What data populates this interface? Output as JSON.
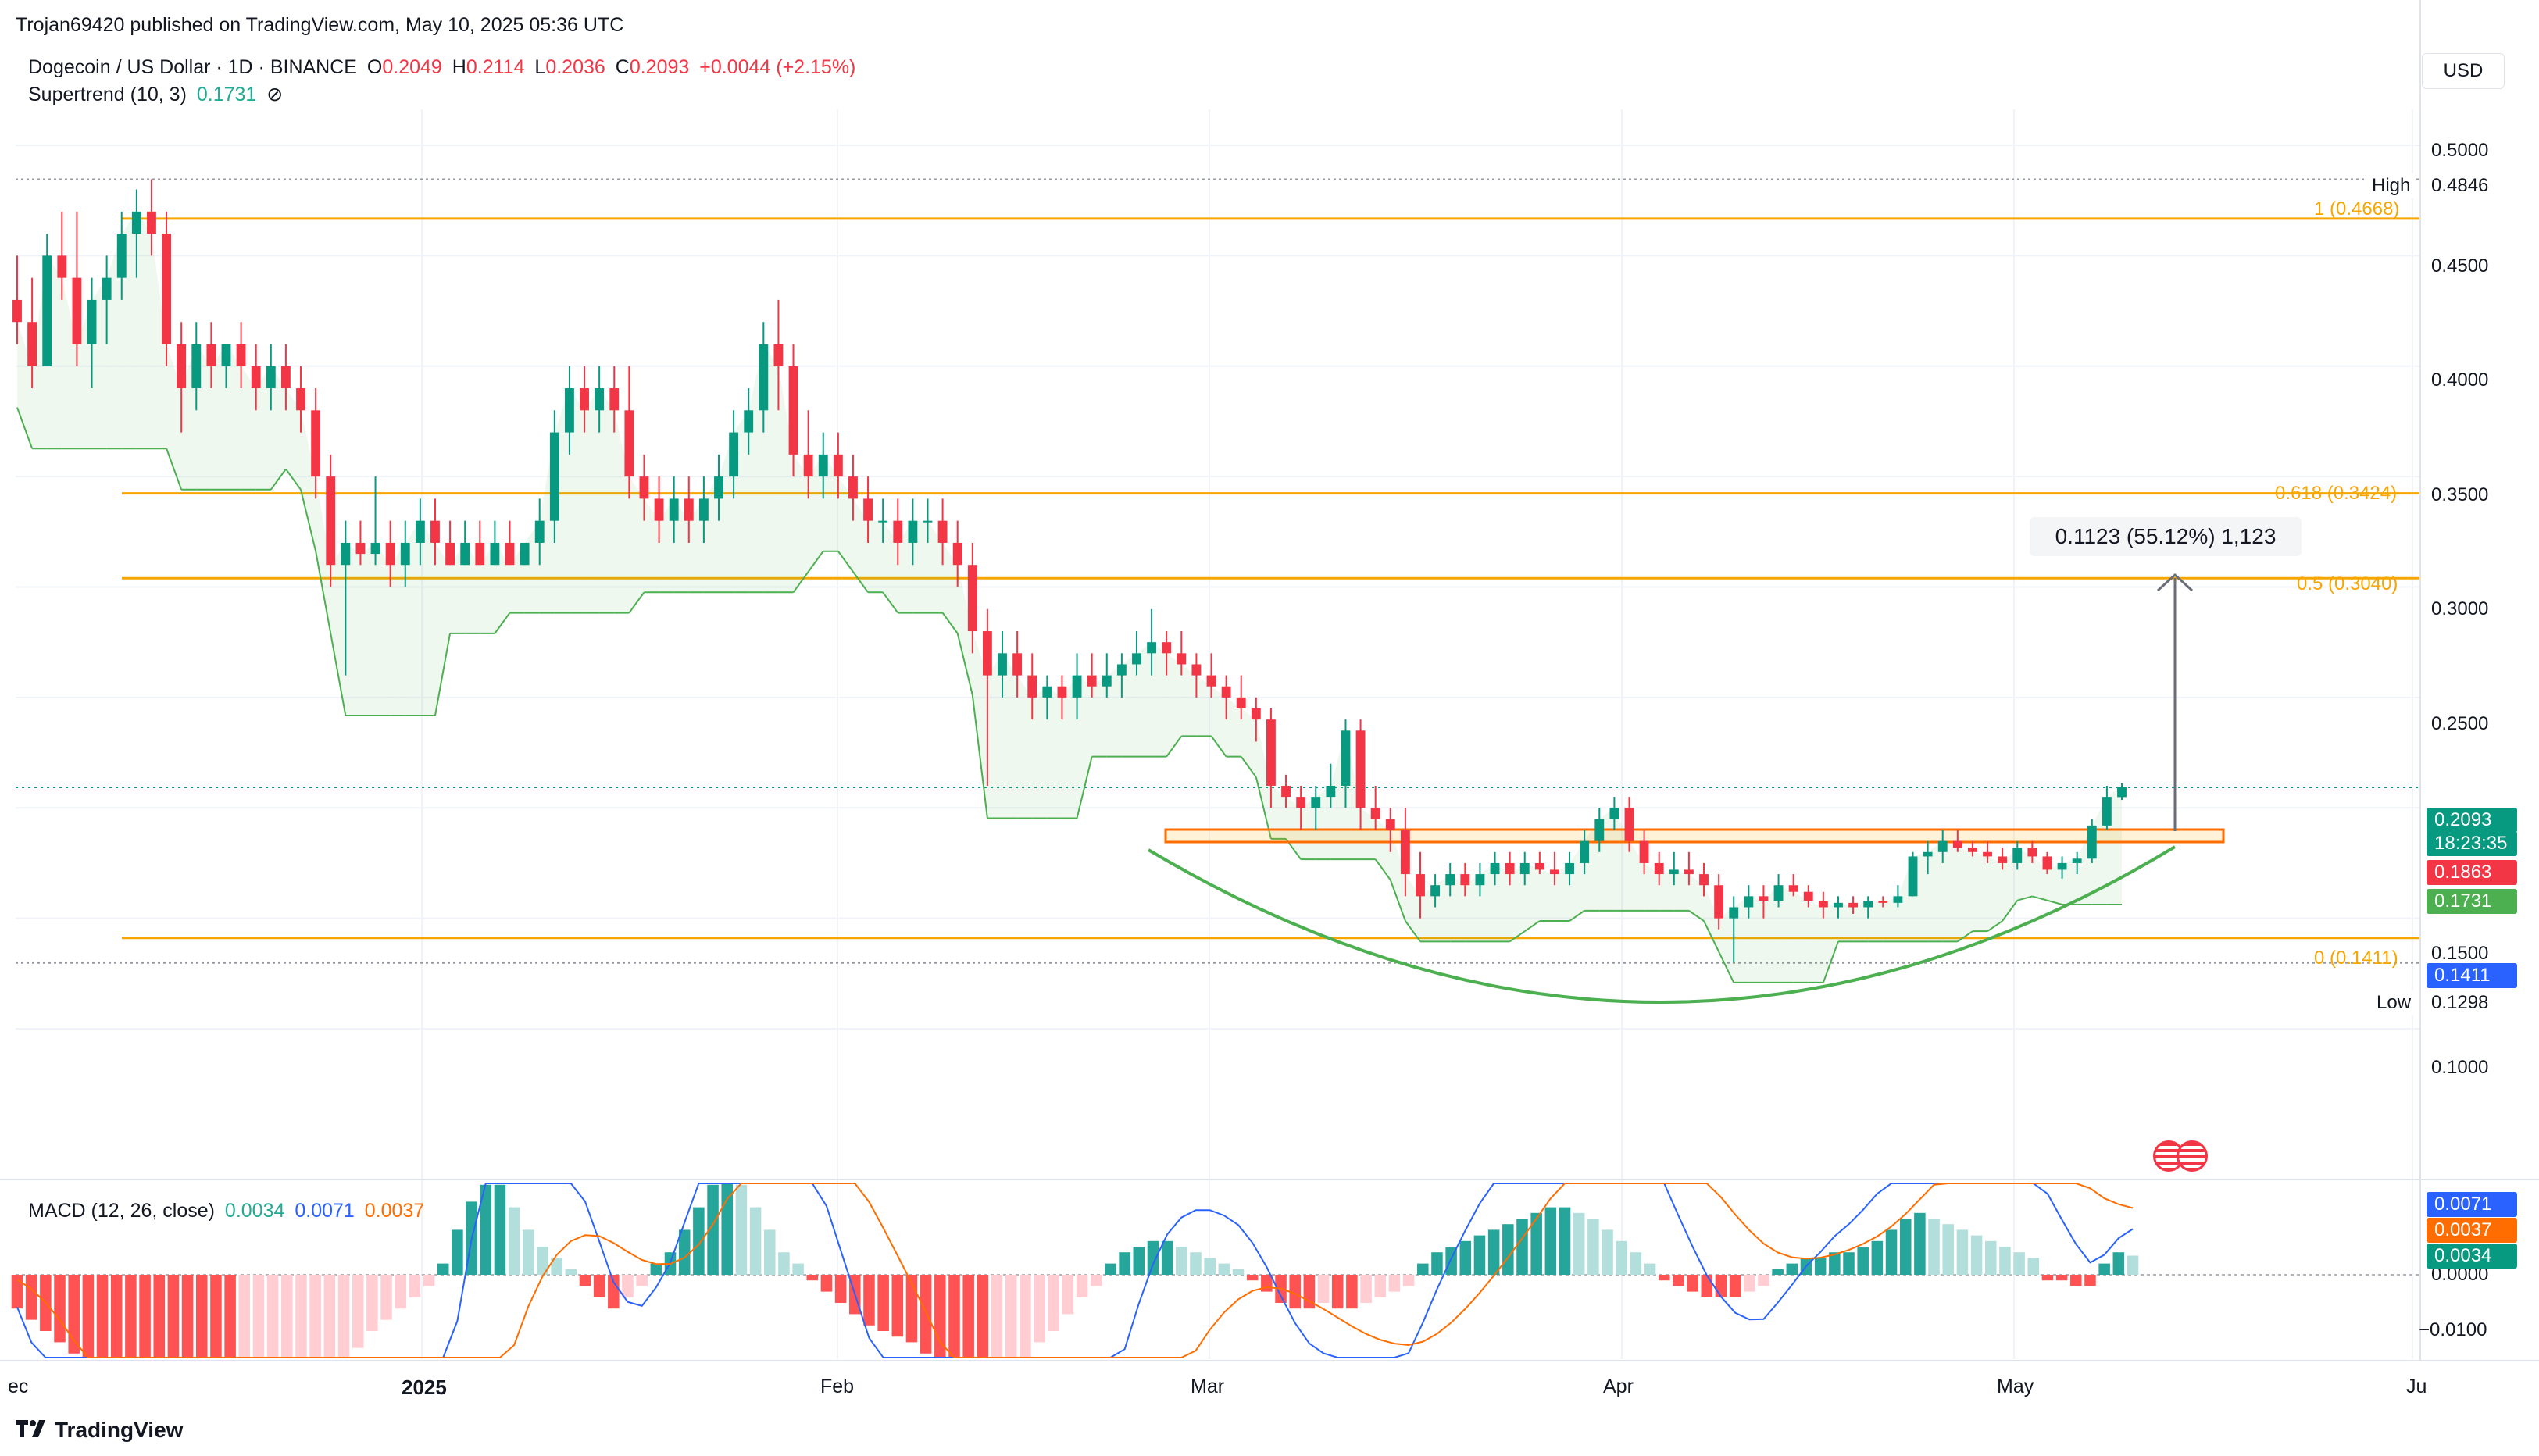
{
  "header": {
    "published_text": "Trojan69420 published on TradingView.com, May 10, 2025 05:36 UTC"
  },
  "legend": {
    "symbol": "Dogecoin / US Dollar · 1D · BINANCE",
    "o_label": "O",
    "o_value": "0.2049",
    "h_label": "H",
    "h_value": "0.2114",
    "l_label": "L",
    "l_value": "0.2036",
    "c_label": "C",
    "c_value": "0.2093",
    "change": "+0.0044 (+2.15%)",
    "indicator": "Supertrend (10, 3)",
    "indicator_value": "0.1731",
    "indicator_icon": "no-visibility-icon"
  },
  "currency_button": "USD",
  "price_axis": {
    "ticks": [
      "0.5000",
      "0.4500",
      "0.4000",
      "0.3500",
      "0.3000",
      "0.2500",
      "0.1500",
      "0.1000"
    ]
  },
  "price_tags": {
    "high_label": "High",
    "high_value": "0.4846",
    "low_label": "Low",
    "low_value": "0.1298",
    "current": "0.2093",
    "countdown": "18:23:35",
    "red": "0.1863",
    "green": "0.1731",
    "blue": "0.1411"
  },
  "fib_labels": [
    "1 (0.4668)",
    "0.618 (0.3424)",
    "0.5 (0.3040)",
    "0 (0.1411)"
  ],
  "measure": {
    "text": "0.1123 (55.12%) 1,123"
  },
  "macd": {
    "label": "MACD (12, 26, close)",
    "hist_value": "0.0034",
    "macd_value": "0.0071",
    "signal_value": "0.0037",
    "axis_ticks": [
      "0.0000",
      "−0.0100"
    ],
    "tag_macd": "0.0071",
    "tag_signal": "0.0037",
    "tag_hist": "0.0034"
  },
  "time_axis": [
    "ec",
    "2025",
    "Feb",
    "Mar",
    "Apr",
    "May",
    "Ju"
  ],
  "footer": {
    "brand": "TradingView"
  },
  "colors": {
    "up": "#089981",
    "down": "#f23645",
    "fib": "#f7a600",
    "supertrend_up": "#4caf50",
    "supertrend_down": "#f23645",
    "macd_line": "#2962ff",
    "signal_line": "#ff6d00",
    "cup": "#4caf50"
  },
  "chart_data": {
    "type": "candlestick",
    "title": "Dogecoin / US Dollar · 1D · BINANCE",
    "ylim": [
      0.08,
      0.52
    ],
    "grid": true,
    "x_range": [
      "2024-12-01",
      "2025-06-01"
    ],
    "series": [
      {
        "name": "DOGEUSD",
        "ohlc": [
          [
            0.43,
            0.45,
            0.41,
            0.42
          ],
          [
            0.42,
            0.44,
            0.39,
            0.4
          ],
          [
            0.4,
            0.46,
            0.4,
            0.45
          ],
          [
            0.45,
            0.47,
            0.43,
            0.44
          ],
          [
            0.44,
            0.47,
            0.4,
            0.41
          ],
          [
            0.41,
            0.44,
            0.39,
            0.43
          ],
          [
            0.43,
            0.45,
            0.41,
            0.44
          ],
          [
            0.44,
            0.47,
            0.43,
            0.46
          ],
          [
            0.46,
            0.48,
            0.44,
            0.47
          ],
          [
            0.47,
            0.4846,
            0.45,
            0.46
          ],
          [
            0.46,
            0.47,
            0.4,
            0.41
          ],
          [
            0.41,
            0.42,
            0.37,
            0.39
          ],
          [
            0.39,
            0.42,
            0.38,
            0.41
          ],
          [
            0.41,
            0.42,
            0.39,
            0.4
          ],
          [
            0.4,
            0.41,
            0.39,
            0.41
          ],
          [
            0.41,
            0.42,
            0.39,
            0.4
          ],
          [
            0.4,
            0.41,
            0.38,
            0.39
          ],
          [
            0.39,
            0.41,
            0.38,
            0.4
          ],
          [
            0.4,
            0.41,
            0.38,
            0.39
          ],
          [
            0.39,
            0.4,
            0.37,
            0.38
          ],
          [
            0.38,
            0.39,
            0.34,
            0.35
          ],
          [
            0.35,
            0.36,
            0.3,
            0.31
          ],
          [
            0.31,
            0.33,
            0.26,
            0.32
          ],
          [
            0.32,
            0.33,
            0.31,
            0.315
          ],
          [
            0.315,
            0.35,
            0.31,
            0.32
          ],
          [
            0.32,
            0.33,
            0.3,
            0.31
          ],
          [
            0.31,
            0.33,
            0.3,
            0.32
          ],
          [
            0.32,
            0.34,
            0.31,
            0.33
          ],
          [
            0.33,
            0.34,
            0.31,
            0.32
          ],
          [
            0.32,
            0.33,
            0.31,
            0.31
          ],
          [
            0.31,
            0.33,
            0.31,
            0.32
          ],
          [
            0.32,
            0.33,
            0.31,
            0.31
          ],
          [
            0.31,
            0.33,
            0.31,
            0.32
          ],
          [
            0.32,
            0.33,
            0.31,
            0.31
          ],
          [
            0.31,
            0.32,
            0.31,
            0.32
          ],
          [
            0.32,
            0.34,
            0.31,
            0.33
          ],
          [
            0.33,
            0.38,
            0.32,
            0.37
          ],
          [
            0.37,
            0.4,
            0.36,
            0.39
          ],
          [
            0.39,
            0.4,
            0.37,
            0.38
          ],
          [
            0.38,
            0.4,
            0.37,
            0.39
          ],
          [
            0.39,
            0.4,
            0.37,
            0.38
          ],
          [
            0.38,
            0.4,
            0.34,
            0.35
          ],
          [
            0.35,
            0.36,
            0.33,
            0.34
          ],
          [
            0.34,
            0.35,
            0.32,
            0.33
          ],
          [
            0.33,
            0.35,
            0.32,
            0.34
          ],
          [
            0.34,
            0.35,
            0.32,
            0.33
          ],
          [
            0.33,
            0.35,
            0.32,
            0.34
          ],
          [
            0.34,
            0.36,
            0.33,
            0.35
          ],
          [
            0.35,
            0.38,
            0.34,
            0.37
          ],
          [
            0.37,
            0.39,
            0.36,
            0.38
          ],
          [
            0.38,
            0.42,
            0.37,
            0.41
          ],
          [
            0.41,
            0.43,
            0.38,
            0.4
          ],
          [
            0.4,
            0.41,
            0.35,
            0.36
          ],
          [
            0.36,
            0.38,
            0.34,
            0.35
          ],
          [
            0.35,
            0.37,
            0.34,
            0.36
          ],
          [
            0.36,
            0.37,
            0.34,
            0.35
          ],
          [
            0.35,
            0.36,
            0.33,
            0.34
          ],
          [
            0.34,
            0.35,
            0.32,
            0.33
          ],
          [
            0.33,
            0.34,
            0.32,
            0.33
          ],
          [
            0.33,
            0.34,
            0.31,
            0.32
          ],
          [
            0.32,
            0.34,
            0.31,
            0.33
          ],
          [
            0.33,
            0.34,
            0.32,
            0.33
          ],
          [
            0.33,
            0.34,
            0.31,
            0.32
          ],
          [
            0.32,
            0.33,
            0.3,
            0.31
          ],
          [
            0.31,
            0.32,
            0.27,
            0.28
          ],
          [
            0.28,
            0.29,
            0.21,
            0.26
          ],
          [
            0.26,
            0.28,
            0.25,
            0.27
          ],
          [
            0.27,
            0.28,
            0.25,
            0.26
          ],
          [
            0.26,
            0.27,
            0.24,
            0.25
          ],
          [
            0.25,
            0.26,
            0.24,
            0.255
          ],
          [
            0.255,
            0.26,
            0.24,
            0.25
          ],
          [
            0.25,
            0.27,
            0.24,
            0.26
          ],
          [
            0.26,
            0.27,
            0.25,
            0.255
          ],
          [
            0.255,
            0.27,
            0.25,
            0.26
          ],
          [
            0.26,
            0.27,
            0.25,
            0.265
          ],
          [
            0.265,
            0.28,
            0.26,
            0.27
          ],
          [
            0.27,
            0.29,
            0.26,
            0.275
          ],
          [
            0.275,
            0.28,
            0.26,
            0.27
          ],
          [
            0.27,
            0.28,
            0.26,
            0.265
          ],
          [
            0.265,
            0.27,
            0.25,
            0.26
          ],
          [
            0.26,
            0.27,
            0.25,
            0.255
          ],
          [
            0.255,
            0.26,
            0.24,
            0.25
          ],
          [
            0.25,
            0.26,
            0.24,
            0.245
          ],
          [
            0.245,
            0.25,
            0.23,
            0.24
          ],
          [
            0.24,
            0.245,
            0.2,
            0.21
          ],
          [
            0.21,
            0.215,
            0.2,
            0.205
          ],
          [
            0.205,
            0.21,
            0.19,
            0.2
          ],
          [
            0.2,
            0.21,
            0.19,
            0.205
          ],
          [
            0.205,
            0.22,
            0.2,
            0.21
          ],
          [
            0.21,
            0.24,
            0.2,
            0.235
          ],
          [
            0.235,
            0.24,
            0.19,
            0.2
          ],
          [
            0.2,
            0.21,
            0.19,
            0.195
          ],
          [
            0.195,
            0.2,
            0.18,
            0.19
          ],
          [
            0.19,
            0.2,
            0.16,
            0.17
          ],
          [
            0.17,
            0.18,
            0.15,
            0.16
          ],
          [
            0.16,
            0.17,
            0.155,
            0.165
          ],
          [
            0.165,
            0.175,
            0.16,
            0.17
          ],
          [
            0.17,
            0.175,
            0.16,
            0.165
          ],
          [
            0.165,
            0.175,
            0.16,
            0.17
          ],
          [
            0.17,
            0.18,
            0.165,
            0.175
          ],
          [
            0.175,
            0.18,
            0.165,
            0.17
          ],
          [
            0.17,
            0.18,
            0.165,
            0.175
          ],
          [
            0.175,
            0.18,
            0.17,
            0.172
          ],
          [
            0.172,
            0.18,
            0.165,
            0.17
          ],
          [
            0.17,
            0.18,
            0.165,
            0.175
          ],
          [
            0.175,
            0.19,
            0.17,
            0.185
          ],
          [
            0.185,
            0.2,
            0.18,
            0.195
          ],
          [
            0.195,
            0.205,
            0.19,
            0.2
          ],
          [
            0.2,
            0.205,
            0.18,
            0.185
          ],
          [
            0.185,
            0.19,
            0.17,
            0.175
          ],
          [
            0.175,
            0.18,
            0.165,
            0.17
          ],
          [
            0.17,
            0.18,
            0.165,
            0.172
          ],
          [
            0.172,
            0.18,
            0.165,
            0.17
          ],
          [
            0.17,
            0.175,
            0.16,
            0.165
          ],
          [
            0.165,
            0.17,
            0.145,
            0.15
          ],
          [
            0.15,
            0.16,
            0.13,
            0.155
          ],
          [
            0.155,
            0.165,
            0.15,
            0.16
          ],
          [
            0.16,
            0.165,
            0.15,
            0.158
          ],
          [
            0.158,
            0.17,
            0.155,
            0.165
          ],
          [
            0.165,
            0.17,
            0.16,
            0.162
          ],
          [
            0.162,
            0.165,
            0.155,
            0.158
          ],
          [
            0.158,
            0.162,
            0.15,
            0.155
          ],
          [
            0.155,
            0.16,
            0.15,
            0.157
          ],
          [
            0.157,
            0.16,
            0.152,
            0.155
          ],
          [
            0.155,
            0.16,
            0.15,
            0.158
          ],
          [
            0.158,
            0.16,
            0.155,
            0.157
          ],
          [
            0.157,
            0.165,
            0.155,
            0.16
          ],
          [
            0.16,
            0.18,
            0.16,
            0.178
          ],
          [
            0.178,
            0.185,
            0.17,
            0.18
          ],
          [
            0.18,
            0.19,
            0.175,
            0.185
          ],
          [
            0.185,
            0.19,
            0.18,
            0.182
          ],
          [
            0.182,
            0.185,
            0.178,
            0.18
          ],
          [
            0.18,
            0.185,
            0.175,
            0.178
          ],
          [
            0.178,
            0.182,
            0.172,
            0.175
          ],
          [
            0.175,
            0.185,
            0.172,
            0.182
          ],
          [
            0.182,
            0.185,
            0.175,
            0.178
          ],
          [
            0.178,
            0.18,
            0.17,
            0.172
          ],
          [
            0.172,
            0.178,
            0.168,
            0.175
          ],
          [
            0.175,
            0.18,
            0.17,
            0.177
          ],
          [
            0.177,
            0.195,
            0.175,
            0.192
          ],
          [
            0.192,
            0.21,
            0.19,
            0.205
          ],
          [
            0.2049,
            0.2114,
            0.2036,
            0.2093
          ]
        ]
      },
      {
        "name": "Supertrend (10, 3)",
        "last": 0.1731
      }
    ],
    "fib_levels": [
      {
        "level": "1",
        "value": 0.4668
      },
      {
        "level": "0.618",
        "value": 0.3424
      },
      {
        "level": "0.5",
        "value": 0.304
      },
      {
        "level": "0",
        "value": 0.1411
      }
    ],
    "high": 0.4846,
    "low": 0.1298,
    "measure": {
      "delta": 0.1123,
      "percent": 55.12,
      "bars": 1123
    },
    "macd": {
      "params": "12, 26, close",
      "ylim": [
        -0.014,
        0.03
      ],
      "histogram": [
        -0.006,
        -0.008,
        -0.01,
        -0.012,
        -0.014,
        -0.015,
        -0.016,
        -0.017,
        -0.018,
        -0.019,
        -0.02,
        -0.022,
        -0.024,
        -0.025,
        -0.026,
        -0.027,
        -0.026,
        -0.025,
        -0.024,
        -0.023,
        -0.022,
        -0.02,
        -0.018,
        -0.015,
        -0.013,
        -0.01,
        -0.008,
        -0.006,
        -0.004,
        -0.002,
        0.002,
        0.008,
        0.013,
        0.016,
        0.016,
        0.012,
        0.008,
        0.005,
        0.003,
        0.001,
        -0.002,
        -0.004,
        -0.006,
        -0.004,
        -0.002,
        0.002,
        0.004,
        0.008,
        0.012,
        0.016,
        0.018,
        0.016,
        0.012,
        0.008,
        0.004,
        0.002,
        -0.001,
        -0.003,
        -0.005,
        -0.007,
        -0.009,
        -0.01,
        -0.011,
        -0.012,
        -0.014,
        -0.016,
        -0.02,
        -0.022,
        -0.024,
        -0.022,
        -0.02,
        -0.016,
        -0.012,
        -0.01,
        -0.007,
        -0.004,
        -0.002,
        0.002,
        0.004,
        0.005,
        0.006,
        0.006,
        0.005,
        0.004,
        0.003,
        0.002,
        0.001,
        -0.001,
        -0.003,
        -0.005,
        -0.006,
        -0.006,
        -0.005,
        -0.006,
        -0.006,
        -0.005,
        -0.004,
        -0.003,
        -0.002,
        0.002,
        0.004,
        0.005,
        0.006,
        0.007,
        0.008,
        0.009,
        0.01,
        0.011,
        0.012,
        0.012,
        0.011,
        0.01,
        0.008,
        0.006,
        0.004,
        0.002,
        -0.001,
        -0.002,
        -0.003,
        -0.004,
        -0.004,
        -0.004,
        -0.003,
        -0.002,
        0.001,
        0.002,
        0.003,
        0.003,
        0.004,
        0.004,
        0.005,
        0.006,
        0.008,
        0.01,
        0.011,
        0.01,
        0.009,
        0.008,
        0.007,
        0.006,
        0.005,
        0.004,
        0.003,
        -0.001,
        -0.001,
        -0.002,
        -0.002,
        0.002,
        0.004,
        0.0034
      ]
    }
  }
}
